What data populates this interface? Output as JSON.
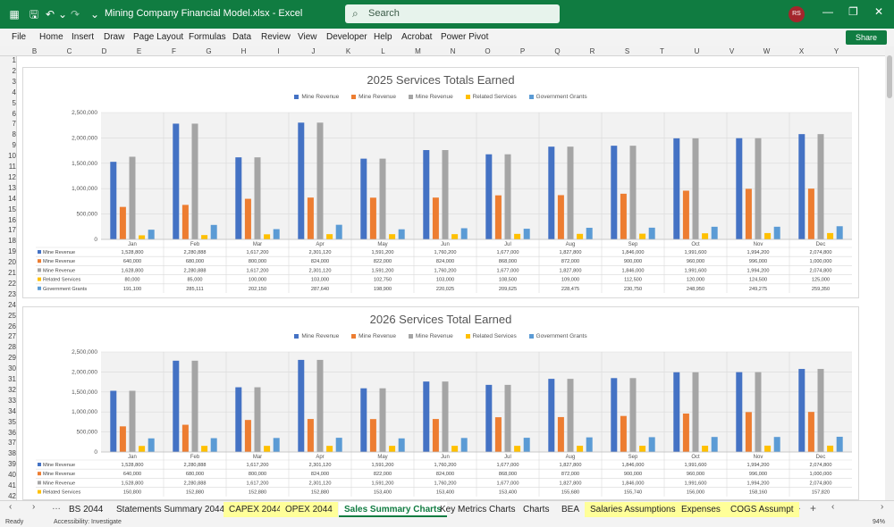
{
  "titlebar": {
    "file_title": "Mining Company Financial Model.xlsx  -  Excel",
    "search_placeholder": "Search",
    "avatar_initials": "RS"
  },
  "menu": [
    "File",
    "Home",
    "Insert",
    "Draw",
    "Page Layout",
    "Formulas",
    "Data",
    "Review",
    "View",
    "Developer",
    "Help",
    "Acrobat",
    "Power Pivot"
  ],
  "share_label": "Share",
  "columns": [
    "B",
    "C",
    "D",
    "E",
    "F",
    "G",
    "H",
    "I",
    "J",
    "K",
    "L",
    "M",
    "N",
    "O",
    "P",
    "Q",
    "R",
    "S",
    "T",
    "U",
    "V",
    "W",
    "X",
    "Y"
  ],
  "rows": [
    "1",
    "2",
    "3",
    "4",
    "5",
    "6",
    "7",
    "8",
    "9",
    "10",
    "11",
    "12",
    "13",
    "14",
    "15",
    "16",
    "17",
    "18",
    "19",
    "20",
    "21",
    "22",
    "23",
    "24",
    "25",
    "26",
    "27",
    "28",
    "29",
    "30",
    "31",
    "32",
    "33",
    "34",
    "35",
    "36",
    "37",
    "38",
    "39",
    "40",
    "41",
    "42"
  ],
  "colors": {
    "accent": "#107c41",
    "mine_revenue_1": "#4472c4",
    "mine_revenue_2": "#ed7d31",
    "mine_revenue_3": "#a5a5a5",
    "related_services": "#ffc000",
    "government_grants": "#5b9bd5"
  },
  "chart_data": [
    {
      "type": "bar",
      "title": "2025 Services Totals Earned",
      "categories": [
        "Jan",
        "Feb",
        "Mar",
        "Apr",
        "May",
        "Jun",
        "Jul",
        "Aug",
        "Sep",
        "Oct",
        "Nov",
        "Dec"
      ],
      "ylim": [
        0,
        2500000
      ],
      "yticks": [
        "0",
        "500,000",
        "1,000,000",
        "1,500,000",
        "2,000,000",
        "2,500,000"
      ],
      "grid": true,
      "legend": "top",
      "series": [
        {
          "name": "Mine Revenue",
          "values": [
            1528800,
            2280888,
            1617200,
            2301120,
            1591200,
            1760200,
            1677000,
            1827800,
            1846000,
            1991600,
            1994200,
            2074800
          ],
          "labels": [
            "1,528,800",
            "2,280,888",
            "1,617,200",
            "2,301,120",
            "1,591,200",
            "1,760,200",
            "1,677,000",
            "1,827,800",
            "1,846,000",
            "1,991,600",
            "1,994,200",
            "2,074,800"
          ]
        },
        {
          "name": "Mine Revenue",
          "values": [
            640000,
            680000,
            800000,
            824000,
            822000,
            824000,
            868000,
            872000,
            900000,
            960000,
            996000,
            1000000
          ],
          "labels": [
            "640,000",
            "680,000",
            "800,000",
            "824,000",
            "822,000",
            "824,000",
            "868,000",
            "872,000",
            "900,000",
            "960,000",
            "996,000",
            "1,000,000"
          ]
        },
        {
          "name": "Mine Revenue",
          "values": [
            1628800,
            2280888,
            1617200,
            2301120,
            1591200,
            1760200,
            1677000,
            1827800,
            1846000,
            1991600,
            1994200,
            2074800
          ],
          "labels": [
            "1,628,800",
            "2,280,888",
            "1,617,200",
            "2,301,120",
            "1,591,200",
            "1,760,200",
            "1,677,000",
            "1,827,800",
            "1,846,000",
            "1,991,600",
            "1,994,200",
            "2,074,800"
          ]
        },
        {
          "name": "Related Services",
          "values": [
            80000,
            85000,
            100000,
            103000,
            102750,
            103000,
            108500,
            109000,
            112500,
            120000,
            124500,
            125000
          ],
          "labels": [
            "80,000",
            "85,000",
            "100,000",
            "103,000",
            "102,750",
            "103,000",
            "108,500",
            "109,000",
            "112,500",
            "120,000",
            "124,500",
            "125,000"
          ]
        },
        {
          "name": "Government Grants",
          "values": [
            191100,
            285111,
            202150,
            287640,
            198900,
            220025,
            209625,
            228475,
            230750,
            248950,
            249275,
            259350
          ],
          "labels": [
            "191,100",
            "285,111",
            "202,150",
            "287,640",
            "198,900",
            "220,025",
            "209,625",
            "228,475",
            "230,750",
            "248,950",
            "249,275",
            "259,350"
          ]
        }
      ]
    },
    {
      "type": "bar",
      "title": "2026 Services Total Earned",
      "categories": [
        "Jan",
        "Feb",
        "Mar",
        "Apr",
        "May",
        "Jun",
        "Jul",
        "Aug",
        "Sep",
        "Oct",
        "Nov",
        "Dec"
      ],
      "ylim": [
        0,
        2500000
      ],
      "yticks": [
        "0",
        "500,000",
        "1,000,000",
        "1,500,000",
        "2,000,000",
        "2,500,000"
      ],
      "grid": true,
      "legend": "top",
      "series": [
        {
          "name": "Mine Revenue",
          "values": [
            1528800,
            2280888,
            1617200,
            2301120,
            1591200,
            1760200,
            1677000,
            1827800,
            1846000,
            1991600,
            1994200,
            2074800
          ],
          "labels": [
            "1,528,800",
            "2,280,888",
            "1,617,200",
            "2,301,120",
            "1,591,200",
            "1,760,200",
            "1,677,000",
            "1,827,800",
            "1,846,000",
            "1,991,600",
            "1,994,200",
            "2,074,800"
          ]
        },
        {
          "name": "Mine Revenue",
          "values": [
            640000,
            680000,
            800000,
            824000,
            822000,
            824000,
            868000,
            872000,
            900000,
            960000,
            996000,
            1000000
          ],
          "labels": [
            "640,000",
            "680,000",
            "800,000",
            "824,000",
            "822,000",
            "824,000",
            "868,000",
            "872,000",
            "900,000",
            "960,000",
            "996,000",
            "1,000,000"
          ]
        },
        {
          "name": "Mine Revenue",
          "values": [
            1528800,
            2280888,
            1617200,
            2301120,
            1591200,
            1760200,
            1677000,
            1827800,
            1846000,
            1991600,
            1994200,
            2074800
          ],
          "labels": [
            "1,528,800",
            "2,280,888",
            "1,617,200",
            "2,301,120",
            "1,591,200",
            "1,760,200",
            "1,677,000",
            "1,827,800",
            "1,846,000",
            "1,991,600",
            "1,994,200",
            "2,074,800"
          ]
        },
        {
          "name": "Related Services",
          "values": [
            150800,
            152880,
            152880,
            152880,
            153400,
            153400,
            153400,
            155680,
            155740,
            156000,
            158160,
            157820
          ],
          "labels": [
            "150,800",
            "152,880",
            "152,880",
            "152,880",
            "153,400",
            "153,400",
            "153,400",
            "155,680",
            "155,740",
            "156,000",
            "158,160",
            "157,820"
          ]
        },
        {
          "name": "Government Grants",
          "values": [
            340000,
            345000,
            350000,
            355000,
            340000,
            350000,
            355000,
            365000,
            370000,
            375000,
            375000,
            380000
          ],
          "labels": []
        }
      ]
    }
  ],
  "sheet_tabs": [
    {
      "label": "BS 2044",
      "style": "plain"
    },
    {
      "label": "Statements Summary 2044",
      "style": "plain"
    },
    {
      "label": "CAPEX 2044",
      "style": "yellow"
    },
    {
      "label": "OPEX 2044",
      "style": "yellow"
    },
    {
      "label": "Sales Summary Charts",
      "style": "active"
    },
    {
      "label": "Key Metrics Charts",
      "style": "plain"
    },
    {
      "label": "Charts",
      "style": "plain"
    },
    {
      "label": "BEA",
      "style": "plain"
    },
    {
      "label": "Salaries Assumptions",
      "style": "yellow"
    },
    {
      "label": "Expenses",
      "style": "yellow"
    },
    {
      "label": "COGS Assumpt",
      "style": "yellow"
    }
  ],
  "status": {
    "ready": "Ready",
    "accessibility": "Accessibility: Investigate",
    "zoom": "94%"
  }
}
